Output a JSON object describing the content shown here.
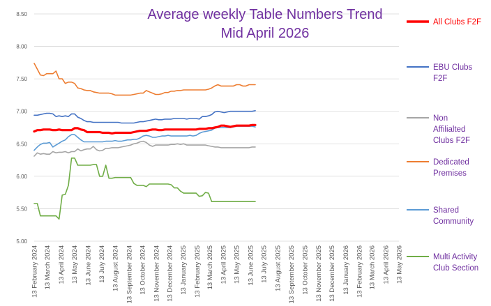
{
  "chart_data": {
    "type": "line",
    "title": [
      "Average weekly Table Numbers Trend",
      "Mid April 2026"
    ],
    "xlabel": "",
    "ylabel": "",
    "ylim": [
      5.0,
      8.5
    ],
    "yticks": [
      "5.00",
      "5.50",
      "6.00",
      "6.50",
      "7.00",
      "7.50",
      "8.00",
      "8.50"
    ],
    "grid": true,
    "legend_position": "right",
    "x_start": "2024-02-13",
    "x_step_days": 7,
    "x_tick_labels": [
      "13 February 2024",
      "13 March 2024",
      "13 April 2024",
      "13 May 2024",
      "13 June 2024",
      "13 July 2024",
      "13 August 2024",
      "13 September 2024",
      "13 October 2024",
      "13 November 2024",
      "13 December 2024",
      "13 January 2025",
      "13 February 2025",
      "13 March 2025",
      "13 April 2025",
      "13 May 2025",
      "13 June 2025",
      "13 July 2025",
      "13 August 2025",
      "13 September 2025",
      "13 October 2025",
      "13 November 2025",
      "13 December 2025",
      "13 January 2026",
      "13 February 2026",
      "13 March 2026",
      "13 April 2026",
      "13 May 2026"
    ],
    "series": [
      {
        "name": "All Clubs F2F",
        "color": "#ff0000",
        "width": 3.2,
        "values": [
          6.69,
          6.71,
          6.71,
          6.72,
          6.72,
          6.72,
          6.71,
          6.71,
          6.72,
          6.71,
          6.71,
          6.71,
          6.71,
          6.74,
          6.74,
          6.72,
          6.71,
          6.68,
          6.68,
          6.68,
          6.68,
          6.68,
          6.67,
          6.67,
          6.67,
          6.66,
          6.67,
          6.67,
          6.67,
          6.67,
          6.67,
          6.67,
          6.68,
          6.69,
          6.7,
          6.7,
          6.7,
          6.71,
          6.72,
          6.72,
          6.71,
          6.71,
          6.72,
          6.72,
          6.72,
          6.72,
          6.72,
          6.72,
          6.72,
          6.72,
          6.72,
          6.72,
          6.72,
          6.73,
          6.73,
          6.73,
          6.74,
          6.74,
          6.75,
          6.76,
          6.78,
          6.78,
          6.77,
          6.76,
          6.77,
          6.78,
          6.78,
          6.78,
          6.78,
          6.78,
          6.79,
          6.79
        ]
      },
      {
        "name": "EBU Clubs F2F",
        "color": "#4472c4",
        "width": 1.6,
        "values": [
          6.94,
          6.94,
          6.95,
          6.96,
          6.97,
          6.97,
          6.96,
          6.92,
          6.93,
          6.92,
          6.93,
          6.92,
          6.96,
          6.96,
          6.91,
          6.89,
          6.86,
          6.84,
          6.84,
          6.83,
          6.83,
          6.83,
          6.83,
          6.83,
          6.83,
          6.83,
          6.83,
          6.83,
          6.82,
          6.82,
          6.82,
          6.82,
          6.82,
          6.83,
          6.84,
          6.84,
          6.85,
          6.86,
          6.87,
          6.88,
          6.87,
          6.87,
          6.88,
          6.88,
          6.88,
          6.89,
          6.89,
          6.89,
          6.89,
          6.88,
          6.89,
          6.89,
          6.89,
          6.88,
          6.92,
          6.92,
          6.93,
          6.95,
          6.99,
          7.0,
          6.99,
          6.98,
          6.99,
          7.0,
          7.0,
          7.0,
          7.0,
          7.0,
          7.0,
          7.0,
          7.0,
          7.01
        ]
      },
      {
        "name": "Non Affilialted Clubs F2F",
        "color": "#a5a5a5",
        "width": 1.6,
        "values": [
          6.31,
          6.36,
          6.34,
          6.35,
          6.34,
          6.34,
          6.38,
          6.36,
          6.37,
          6.37,
          6.38,
          6.36,
          6.38,
          6.38,
          6.42,
          6.39,
          6.41,
          6.42,
          6.42,
          6.46,
          6.41,
          6.39,
          6.4,
          6.43,
          6.43,
          6.44,
          6.44,
          6.44,
          6.45,
          6.46,
          6.47,
          6.48,
          6.5,
          6.51,
          6.53,
          6.54,
          6.52,
          6.48,
          6.46,
          6.48,
          6.48,
          6.48,
          6.48,
          6.48,
          6.49,
          6.49,
          6.5,
          6.49,
          6.5,
          6.48,
          6.48,
          6.48,
          6.48,
          6.48,
          6.48,
          6.48,
          6.47,
          6.46,
          6.45,
          6.45,
          6.44,
          6.44,
          6.44,
          6.44,
          6.44,
          6.44,
          6.44,
          6.44,
          6.44,
          6.44,
          6.45,
          6.45
        ]
      },
      {
        "name": "Dedicated Premises",
        "color": "#ed7d31",
        "width": 1.6,
        "values": [
          7.74,
          7.65,
          7.56,
          7.55,
          7.58,
          7.58,
          7.58,
          7.62,
          7.5,
          7.5,
          7.43,
          7.45,
          7.45,
          7.43,
          7.36,
          7.35,
          7.33,
          7.32,
          7.32,
          7.3,
          7.29,
          7.28,
          7.28,
          7.28,
          7.28,
          7.27,
          7.25,
          7.25,
          7.25,
          7.25,
          7.25,
          7.25,
          7.26,
          7.27,
          7.28,
          7.28,
          7.32,
          7.3,
          7.28,
          7.26,
          7.26,
          7.27,
          7.29,
          7.29,
          7.31,
          7.31,
          7.32,
          7.32,
          7.33,
          7.33,
          7.33,
          7.33,
          7.33,
          7.33,
          7.33,
          7.33,
          7.34,
          7.36,
          7.39,
          7.41,
          7.39,
          7.39,
          7.39,
          7.39,
          7.39,
          7.41,
          7.41,
          7.39,
          7.39,
          7.41,
          7.41,
          7.41
        ]
      },
      {
        "name": "Shared Community",
        "color": "#5b9bd5",
        "width": 1.6,
        "values": [
          6.4,
          6.45,
          6.49,
          6.51,
          6.51,
          6.52,
          6.45,
          6.48,
          6.51,
          6.54,
          6.56,
          6.61,
          6.64,
          6.64,
          6.6,
          6.56,
          6.53,
          6.53,
          6.53,
          6.53,
          6.53,
          6.53,
          6.53,
          6.54,
          6.54,
          6.54,
          6.55,
          6.54,
          6.54,
          6.55,
          6.56,
          6.56,
          6.57,
          6.57,
          6.59,
          6.62,
          6.63,
          6.62,
          6.6,
          6.6,
          6.61,
          6.62,
          6.62,
          6.63,
          6.62,
          6.62,
          6.62,
          6.62,
          6.62,
          6.62,
          6.63,
          6.62,
          6.63,
          6.66,
          6.68,
          6.69,
          6.7,
          6.71,
          6.74,
          6.75,
          6.75,
          6.75,
          6.75,
          6.75,
          6.76,
          6.77,
          6.77,
          6.77,
          6.77,
          6.77,
          6.77,
          6.76
        ]
      },
      {
        "name": "Multi Activity Club Section",
        "color": "#70ad47",
        "width": 1.6,
        "values": [
          5.58,
          5.58,
          5.39,
          5.39,
          5.39,
          5.39,
          5.39,
          5.39,
          5.34,
          5.71,
          5.72,
          5.86,
          6.28,
          6.28,
          6.17,
          6.17,
          6.17,
          6.17,
          6.17,
          6.18,
          6.18,
          6.0,
          6.0,
          6.17,
          5.97,
          5.97,
          5.98,
          5.98,
          5.98,
          5.98,
          5.98,
          5.98,
          5.89,
          5.86,
          5.86,
          5.86,
          5.84,
          5.88,
          5.88,
          5.88,
          5.88,
          5.88,
          5.88,
          5.88,
          5.87,
          5.82,
          5.82,
          5.77,
          5.74,
          5.74,
          5.74,
          5.74,
          5.74,
          5.69,
          5.7,
          5.75,
          5.74,
          5.61,
          5.61,
          5.61,
          5.61,
          5.61,
          5.61,
          5.61,
          5.61,
          5.61,
          5.61,
          5.61,
          5.61,
          5.61,
          5.61,
          5.61
        ]
      }
    ]
  }
}
